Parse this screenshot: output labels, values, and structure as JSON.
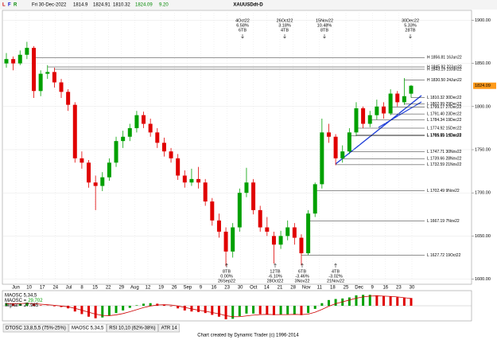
{
  "chart_data": {
    "type": "candlestick",
    "title": "XAUUSDdt-D",
    "header": {
      "date": "Fri 30-Dec-2022",
      "change": "9.20"
    },
    "ylim": [
      1595,
      1905
    ],
    "yticks": [
      {
        "value": 1600,
        "label": "1600.00"
      },
      {
        "value": 1650,
        "label": "1650.00"
      },
      {
        "value": 1700,
        "label": "1700.00"
      },
      {
        "value": 1750,
        "label": "1750.00"
      },
      {
        "value": 1800,
        "label": "1800.00"
      },
      {
        "value": 1850,
        "label": "1850.00"
      },
      {
        "value": 1900,
        "label": "1900.00"
      }
    ],
    "date_labels": [
      "Jun",
      "10",
      "17",
      "24",
      "Jul",
      "8",
      "15",
      "22",
      "29",
      "Aug",
      "12",
      "19",
      "26",
      "Sep",
      "9",
      "16",
      "23",
      "30",
      "Oct",
      "14",
      "21",
      "28",
      "Nov",
      "11",
      "18",
      "25",
      "Dec",
      "9",
      "16",
      "23",
      "30"
    ],
    "up_color": "#00a000",
    "down_color": "#e00000",
    "candles": [
      [
        1850,
        1862,
        1845,
        1855
      ],
      [
        1855,
        1858,
        1842,
        1850
      ],
      [
        1850,
        1865,
        1848,
        1860
      ],
      [
        1860,
        1875,
        1855,
        1868
      ],
      [
        1868,
        1870,
        1810,
        1818
      ],
      [
        1818,
        1842,
        1812,
        1838
      ],
      [
        1838,
        1848,
        1832,
        1840
      ],
      [
        1840,
        1845,
        1822,
        1828
      ],
      [
        1828,
        1832,
        1810,
        1817
      ],
      [
        1817,
        1820,
        1795,
        1802
      ],
      [
        1802,
        1805,
        1735,
        1740
      ],
      [
        1740,
        1748,
        1728,
        1735
      ],
      [
        1735,
        1738,
        1706,
        1712
      ],
      [
        1712,
        1720,
        1680,
        1708
      ],
      [
        1708,
        1724,
        1702,
        1718
      ],
      [
        1718,
        1740,
        1714,
        1735
      ],
      [
        1735,
        1765,
        1730,
        1760
      ],
      [
        1760,
        1772,
        1752,
        1765
      ],
      [
        1765,
        1780,
        1760,
        1775
      ],
      [
        1775,
        1795,
        1770,
        1790
      ],
      [
        1790,
        1794,
        1775,
        1780
      ],
      [
        1780,
        1786,
        1765,
        1770
      ],
      [
        1770,
        1775,
        1752,
        1758
      ],
      [
        1758,
        1764,
        1742,
        1748
      ],
      [
        1748,
        1752,
        1735,
        1740
      ],
      [
        1740,
        1745,
        1715,
        1720
      ],
      [
        1720,
        1726,
        1706,
        1712
      ],
      [
        1712,
        1728,
        1708,
        1716
      ],
      [
        1716,
        1730,
        1705,
        1712
      ],
      [
        1712,
        1716,
        1685,
        1690
      ],
      [
        1690,
        1694,
        1662,
        1668
      ],
      [
        1668,
        1676,
        1648,
        1655
      ],
      [
        1655,
        1660,
        1615,
        1632
      ],
      [
        1632,
        1665,
        1625,
        1660
      ],
      [
        1660,
        1705,
        1655,
        1700
      ],
      [
        1700,
        1729,
        1695,
        1712
      ],
      [
        1712,
        1716,
        1675,
        1680
      ],
      [
        1680,
        1685,
        1655,
        1660
      ],
      [
        1660,
        1672,
        1650,
        1655
      ],
      [
        1650,
        1655,
        1618,
        1640
      ],
      [
        1640,
        1656,
        1635,
        1650
      ],
      [
        1650,
        1668,
        1645,
        1660
      ],
      [
        1660,
        1665,
        1640,
        1648
      ],
      [
        1648,
        1652,
        1616,
        1630
      ],
      [
        1630,
        1680,
        1628,
        1676
      ],
      [
        1676,
        1712,
        1672,
        1710
      ],
      [
        1710,
        1786,
        1705,
        1770
      ],
      [
        1770,
        1780,
        1758,
        1765
      ],
      [
        1765,
        1768,
        1732,
        1740
      ],
      [
        1740,
        1755,
        1735,
        1748
      ],
      [
        1748,
        1775,
        1745,
        1770
      ],
      [
        1770,
        1805,
        1766,
        1798
      ],
      [
        1798,
        1800,
        1775,
        1780
      ],
      [
        1780,
        1795,
        1776,
        1790
      ],
      [
        1790,
        1808,
        1785,
        1800
      ],
      [
        1800,
        1805,
        1786,
        1792
      ],
      [
        1792,
        1820,
        1790,
        1815
      ],
      [
        1815,
        1818,
        1800,
        1805
      ],
      [
        1805,
        1833,
        1802,
        1812
      ],
      [
        1814.9,
        1824.91,
        1810.32,
        1824.09
      ]
    ],
    "levels": [
      {
        "value": 1856.81,
        "label": "H 1856.81 16Jun22"
      },
      {
        "value": 1845.92,
        "label": "H 1845.92 22Jun22"
      },
      {
        "value": 1843.19,
        "label": "H 1843.19 23Jun22"
      },
      {
        "value": 1830.5,
        "label": "H 1830.50 24Jun22"
      },
      {
        "value": 1810.32,
        "label": "L 1810.32 30Dec22"
      },
      {
        "value": 1802.99,
        "label": "L 1802.99 29Dec22"
      },
      {
        "value": 1799.17,
        "label": "L 1799.17 27Dec22"
      },
      {
        "value": 1791.4,
        "label": "L 1791.40 23Dec22"
      },
      {
        "value": 1784.34,
        "label": "L 1784.34 19Dec22"
      },
      {
        "value": 1774.92,
        "label": "L 1774.92 15Dec22"
      },
      {
        "value": 1766.95,
        "label": "L 1766.95 14Dec22"
      },
      {
        "value": 1765.99,
        "label": "L 1765.99 13Dec22"
      },
      {
        "value": 1747.71,
        "label": "L 1747.71 30Nov22"
      },
      {
        "value": 1739.66,
        "label": "L 1739.66 28Nov22"
      },
      {
        "value": 1732.59,
        "label": "L 1732.59 21Nov22"
      },
      {
        "value": 1702.49,
        "label": "L 1702.49 9Nov22"
      },
      {
        "value": 1667.19,
        "label": "L 1667.19 7Nov22"
      },
      {
        "value": 1627.72,
        "label": "L 1627.72 19Oct22"
      }
    ],
    "top_annotations": [
      [
        "4Oct22",
        "6.58%",
        "6TB"
      ],
      [
        "26Oct22",
        "3.18%",
        "4TB"
      ],
      [
        "15Nov22",
        "10.48%",
        "8TB"
      ],
      [
        "30Dec22",
        "5.33%",
        "28TB"
      ]
    ],
    "bottom_annotations": [
      [
        "8TB",
        "0.00%",
        "26Sep22"
      ],
      [
        "12TB",
        "-6.10%",
        "28Oct22"
      ],
      [
        "6TB",
        "-3.46%",
        "3Nov22"
      ],
      [
        "4TB",
        "-3.02%",
        "21Nov22"
      ]
    ],
    "oscillator": {
      "histogram_label": "MAOSC =",
      "signal_label": "Signal =",
      "signal_color": "#cc0000",
      "histogram": [
        10,
        8,
        9,
        12,
        5,
        2,
        1,
        -2,
        -5,
        -10,
        -22,
        -32,
        -42,
        -48,
        -45,
        -38,
        -28,
        -18,
        -8,
        2,
        8,
        10,
        8,
        4,
        -2,
        -10,
        -18,
        -22,
        -24,
        -28,
        -35,
        -42,
        -52,
        -50,
        -40,
        -30,
        -30,
        -32,
        -34,
        -36,
        -35,
        -33,
        -32,
        -36,
        -28,
        -12,
        10,
        22,
        26,
        28,
        32,
        40,
        42,
        42,
        40,
        37,
        36,
        33,
        31,
        29.702
      ],
      "signal": [
        8,
        8,
        8.5,
        9.5,
        8,
        6,
        4,
        2,
        -1,
        -4,
        -10,
        -17,
        -25,
        -32,
        -37,
        -38,
        -35,
        -30,
        -23,
        -15,
        -7,
        -1,
        3,
        4,
        3,
        -1,
        -6,
        -12,
        -17,
        -21,
        -26,
        -31,
        -38,
        -42,
        -42,
        -39,
        -36,
        -34,
        -33,
        -34,
        -34,
        -34,
        -33,
        -34,
        -32,
        -25,
        -14,
        -2,
        8,
        15,
        22,
        29,
        34,
        37,
        38,
        37,
        36,
        34,
        31,
        27.965
      ]
    },
    "tabs": [
      "DTOSC 13,8,5,5 (75%-25%)",
      "MAOSC 5,34,5",
      "RSI 10,10 (62%-38%)",
      "ATR 14"
    ],
    "footer": "Chart created by Dynamic Trader  (c)  1996-2014"
  }
}
